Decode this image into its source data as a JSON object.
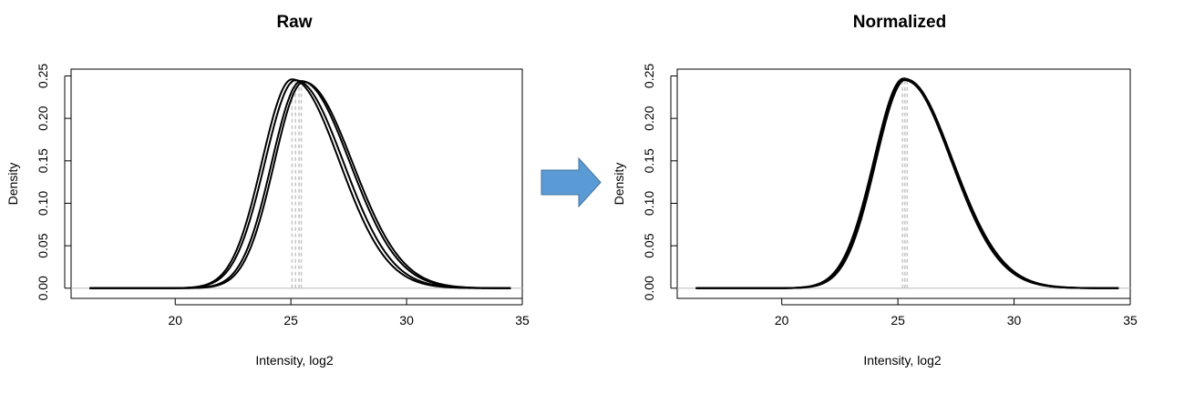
{
  "colors": {
    "curve": "#000000",
    "median_line": "#c8c8c8",
    "baseline": "#c0c0c0",
    "arrow": "#5b9bd5",
    "arrow_border": "#41719c"
  },
  "arrow": {
    "icon": "right-arrow-icon"
  },
  "chart_data": [
    {
      "type": "line",
      "title": "Raw",
      "xlabel": "Intensity, log2",
      "ylabel": "Density",
      "xlim": [
        15.5,
        35
      ],
      "ylim": [
        -0.012,
        0.258
      ],
      "xticks": [
        20,
        25,
        30,
        35
      ],
      "yticks": [
        0.0,
        0.05,
        0.1,
        0.15,
        0.2,
        0.25
      ],
      "ytick_labels": [
        "0.00",
        "0.05",
        "0.10",
        "0.15",
        "0.20",
        "0.25"
      ],
      "grid": false,
      "baseline_y": 0,
      "median_lines": [
        25.05,
        25.2,
        25.35,
        25.45
      ],
      "series": [
        {
          "peak": 25.05,
          "sd_left": 1.3,
          "sd_right": 2.05,
          "height": 0.246
        },
        {
          "peak": 25.2,
          "sd_left": 1.32,
          "sd_right": 2.07,
          "height": 0.245
        },
        {
          "peak": 25.45,
          "sd_left": 1.28,
          "sd_right": 2.1,
          "height": 0.244
        },
        {
          "peak": 25.55,
          "sd_left": 1.27,
          "sd_right": 2.12,
          "height": 0.243
        }
      ],
      "x_range": [
        16.3,
        34.5
      ]
    },
    {
      "type": "line",
      "title": "Normalized",
      "xlabel": "Intensity, log2",
      "ylabel": "Density",
      "xlim": [
        15.5,
        35
      ],
      "ylim": [
        -0.012,
        0.258
      ],
      "xticks": [
        20,
        25,
        30,
        35
      ],
      "yticks": [
        0.0,
        0.05,
        0.1,
        0.15,
        0.2,
        0.25
      ],
      "ytick_labels": [
        "0.00",
        "0.05",
        "0.10",
        "0.15",
        "0.20",
        "0.25"
      ],
      "grid": false,
      "baseline_y": 0,
      "median_lines": [
        25.2,
        25.3,
        25.4
      ],
      "series": [
        {
          "peak": 25.25,
          "sd_left": 1.29,
          "sd_right": 2.05,
          "height": 0.247
        },
        {
          "peak": 25.3,
          "sd_left": 1.31,
          "sd_right": 2.08,
          "height": 0.246
        },
        {
          "peak": 25.35,
          "sd_left": 1.3,
          "sd_right": 2.02,
          "height": 0.246
        },
        {
          "peak": 25.28,
          "sd_left": 1.33,
          "sd_right": 2.1,
          "height": 0.245
        }
      ],
      "x_range": [
        16.3,
        34.5
      ]
    }
  ]
}
